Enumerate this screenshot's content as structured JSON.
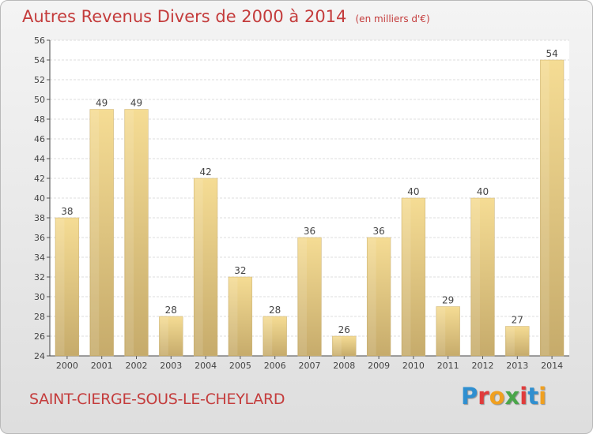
{
  "header": {
    "title": "Autres Revenus Divers de 2000 à 2014",
    "unit_note": "(en milliers d'€)"
  },
  "footer": {
    "commune": "SAINT-CIERGE-SOUS-LE-CHEYLARD",
    "logo_text": "Proxiti"
  },
  "colors": {
    "title": "#c43c3c",
    "bar_light": "#f5dc94",
    "bar_dark": "#c6ab6b",
    "logo": [
      "#2f8fd0",
      "#e03b3b",
      "#f0a020",
      "#4aa64a",
      "#e03b3b",
      "#2f8fd0",
      "#f0a020"
    ]
  },
  "chart_data": {
    "type": "bar",
    "title": "Autres Revenus Divers de 2000 à 2014",
    "xlabel": "",
    "ylabel": "",
    "categories": [
      "2000",
      "2001",
      "2002",
      "2003",
      "2004",
      "2005",
      "2006",
      "2007",
      "2008",
      "2009",
      "2010",
      "2011",
      "2012",
      "2013",
      "2014"
    ],
    "values": [
      38,
      49,
      49,
      28,
      42,
      32,
      28,
      36,
      26,
      36,
      40,
      29,
      40,
      27,
      54
    ],
    "ylim": [
      24,
      56
    ],
    "yticks": [
      24,
      26,
      28,
      30,
      32,
      34,
      36,
      38,
      40,
      42,
      44,
      46,
      48,
      50,
      52,
      54,
      56
    ],
    "grid": true,
    "legend": "none"
  }
}
